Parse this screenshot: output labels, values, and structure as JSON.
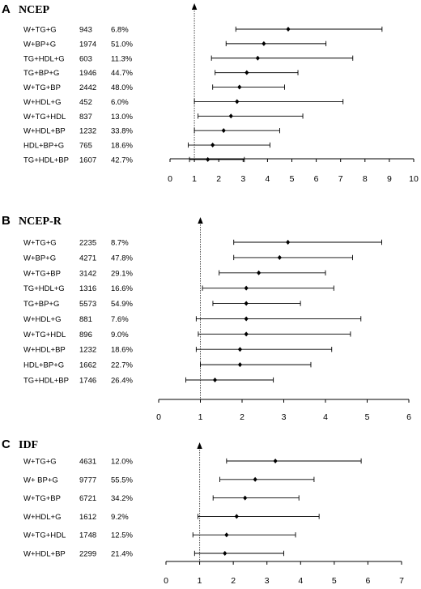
{
  "chart_data": [
    {
      "type": "forest",
      "panel_label": "A",
      "title": "NCEP",
      "xlim": [
        0,
        10
      ],
      "xticks": [
        "0",
        "1",
        "2",
        "3",
        "4",
        "5",
        "6",
        "7",
        "8",
        "9",
        "10"
      ],
      "reference_x": 1,
      "rows": [
        {
          "label": "W+TG+G",
          "n": "943",
          "pct": "6.8%",
          "est": 4.85,
          "lo": 2.7,
          "hi": 8.7
        },
        {
          "label": "W+BP+G",
          "n": "1974",
          "pct": "51.0%",
          "est": 3.85,
          "lo": 2.3,
          "hi": 6.4
        },
        {
          "label": "TG+HDL+G",
          "n": "603",
          "pct": "11.3%",
          "est": 3.6,
          "lo": 1.7,
          "hi": 7.5
        },
        {
          "label": "TG+BP+G",
          "n": "1946",
          "pct": "44.7%",
          "est": 3.15,
          "lo": 1.85,
          "hi": 5.25
        },
        {
          "label": "W+TG+BP",
          "n": "2442",
          "pct": "48.0%",
          "est": 2.85,
          "lo": 1.75,
          "hi": 4.7
        },
        {
          "label": "W+HDL+G",
          "n": "452",
          "pct": "6.0%",
          "est": 2.75,
          "lo": 1.0,
          "hi": 7.1
        },
        {
          "label": "W+TG+HDL",
          "n": "837",
          "pct": "13.0%",
          "est": 2.5,
          "lo": 1.15,
          "hi": 5.45
        },
        {
          "label": "W+HDL+BP",
          "n": "1232",
          "pct": "33.8%",
          "est": 2.2,
          "lo": 1.0,
          "hi": 4.5
        },
        {
          "label": "HDL+BP+G",
          "n": "765",
          "pct": "18.6%",
          "est": 1.75,
          "lo": 0.75,
          "hi": 4.1
        },
        {
          "label": "TG+HDL+BP",
          "n": "1607",
          "pct": "42.7%",
          "est": 1.55,
          "lo": 0.8,
          "hi": 3.05
        }
      ]
    },
    {
      "type": "forest",
      "panel_label": "B",
      "title": "NCEP-R",
      "xlim": [
        0,
        6
      ],
      "xticks": [
        "0",
        "1",
        "2",
        "3",
        "4",
        "5",
        "6"
      ],
      "reference_x": 1,
      "rows": [
        {
          "label": "W+TG+G",
          "n": "2235",
          "pct": "8.7%",
          "est": 3.1,
          "lo": 1.8,
          "hi": 5.35
        },
        {
          "label": "W+BP+G",
          "n": "4271",
          "pct": "47.8%",
          "est": 2.9,
          "lo": 1.8,
          "hi": 4.65
        },
        {
          "label": "W+TG+BP",
          "n": "3142",
          "pct": "29.1%",
          "est": 2.4,
          "lo": 1.45,
          "hi": 4.0
        },
        {
          "label": "TG+HDL+G",
          "n": "1316",
          "pct": "16.6%",
          "est": 2.1,
          "lo": 1.05,
          "hi": 4.2
        },
        {
          "label": "TG+BP+G",
          "n": "5573",
          "pct": "54.9%",
          "est": 2.1,
          "lo": 1.3,
          "hi": 3.4
        },
        {
          "label": "W+HDL+G",
          "n": "881",
          "pct": "7.6%",
          "est": 2.1,
          "lo": 0.9,
          "hi": 4.85
        },
        {
          "label": "W+TG+HDL",
          "n": "896",
          "pct": "9.0%",
          "est": 2.1,
          "lo": 0.95,
          "hi": 4.6
        },
        {
          "label": "W+HDL+BP",
          "n": "1232",
          "pct": "18.6%",
          "est": 1.95,
          "lo": 0.9,
          "hi": 4.15
        },
        {
          "label": "HDL+BP+G",
          "n": "1662",
          "pct": "22.7%",
          "est": 1.95,
          "lo": 1.0,
          "hi": 3.65
        },
        {
          "label": "TG+HDL+BP",
          "n": "1746",
          "pct": "26.4%",
          "est": 1.35,
          "lo": 0.65,
          "hi": 2.75
        }
      ]
    },
    {
      "type": "forest",
      "panel_label": "C",
      "title": "IDF",
      "xlim": [
        0,
        7
      ],
      "xticks": [
        "0",
        "1",
        "2",
        "3",
        "4",
        "5",
        "6",
        "7"
      ],
      "reference_x": 1,
      "rows": [
        {
          "label": "W+TG+G",
          "n": "4631",
          "pct": "12.0%",
          "est": 3.25,
          "lo": 1.8,
          "hi": 5.8
        },
        {
          "label": "W+ BP+G",
          "n": "9777",
          "pct": "55.5%",
          "est": 2.65,
          "lo": 1.6,
          "hi": 4.4
        },
        {
          "label": "W+TG+BP",
          "n": "6721",
          "pct": "34.2%",
          "est": 2.35,
          "lo": 1.4,
          "hi": 3.95
        },
        {
          "label": "W+HDL+G",
          "n": "1612",
          "pct": "9.2%",
          "est": 2.1,
          "lo": 0.95,
          "hi": 4.55
        },
        {
          "label": "W+TG+HDL",
          "n": "1748",
          "pct": "12.5%",
          "est": 1.8,
          "lo": 0.8,
          "hi": 3.85
        },
        {
          "label": "W+HDL+BP",
          "n": "2299",
          "pct": "21.4%",
          "est": 1.75,
          "lo": 0.85,
          "hi": 3.5
        }
      ]
    }
  ]
}
